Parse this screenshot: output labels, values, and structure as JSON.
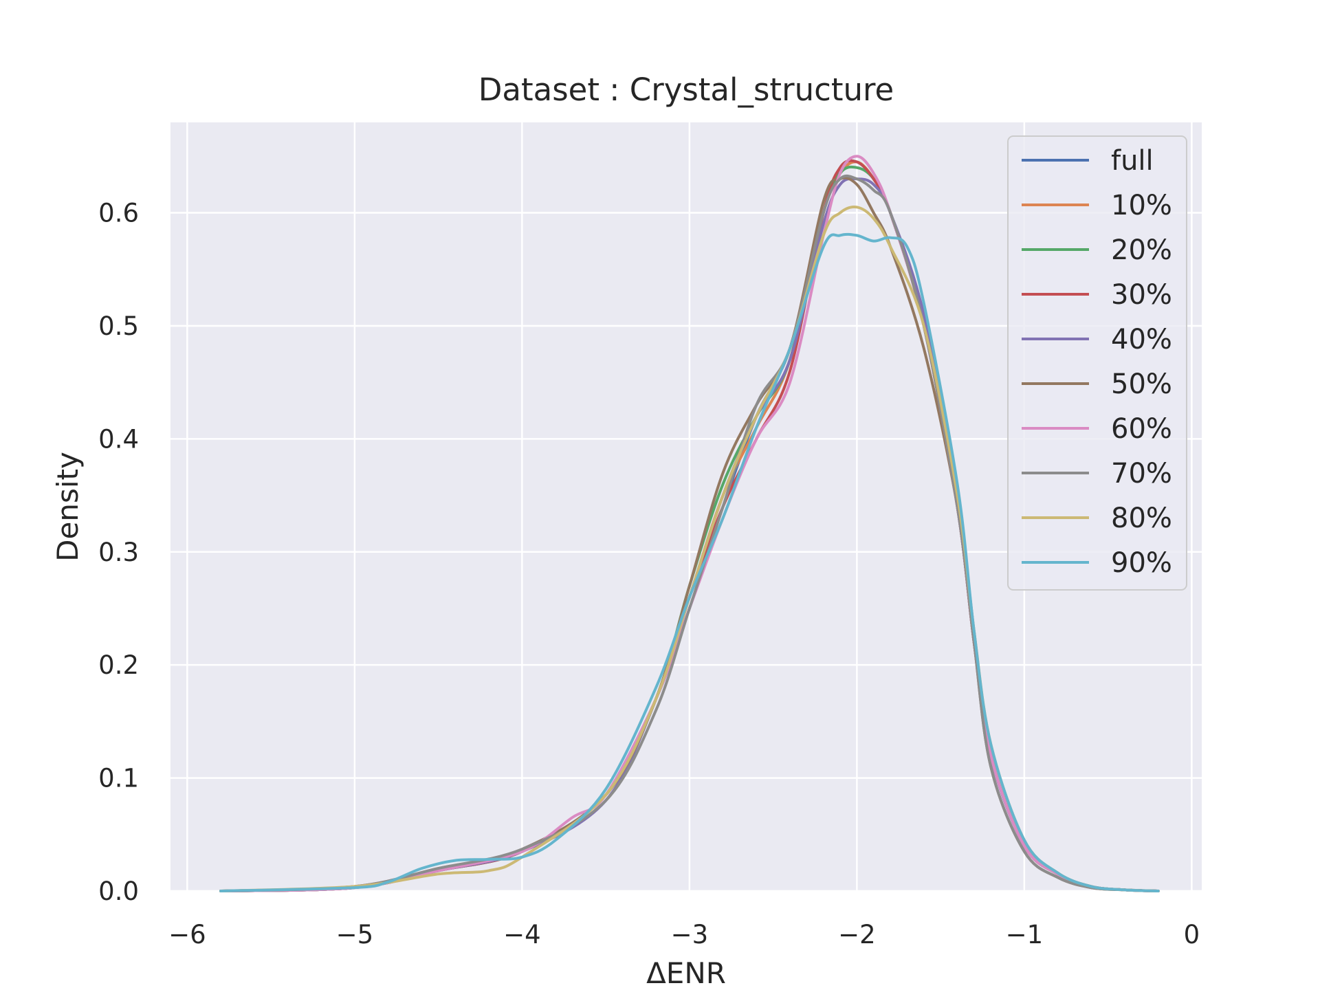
{
  "chart_data": {
    "type": "line",
    "title": "Dataset : Crystal_structure",
    "xlabel": "ΔENR",
    "ylabel": "Density",
    "xlim": [
      -6.1,
      0.06
    ],
    "ylim": [
      0,
      0.68
    ],
    "xticks": [
      -6,
      -5,
      -4,
      -3,
      -2,
      -1,
      0
    ],
    "xtick_labels": [
      "−6",
      "−5",
      "−4",
      "−3",
      "−2",
      "−1",
      "0"
    ],
    "yticks": [
      0.0,
      0.1,
      0.2,
      0.3,
      0.4,
      0.5,
      0.6
    ],
    "ytick_labels": [
      "0.0",
      "0.1",
      "0.2",
      "0.3",
      "0.4",
      "0.5",
      "0.6"
    ],
    "grid": true,
    "legend_position": "top-right",
    "colors": {
      "background": "#eaeaf2",
      "grid": "#ffffff",
      "text": "#262626"
    },
    "series": [
      {
        "name": "full",
        "color": "#4c72b0",
        "x": [
          -5.8,
          -5.0,
          -4.5,
          -4.0,
          -3.5,
          -3.2,
          -3.0,
          -2.8,
          -2.6,
          -2.4,
          -2.2,
          -2.1,
          -2.0,
          -1.9,
          -1.8,
          -1.6,
          -1.4,
          -1.3,
          -1.2,
          -1.0,
          -0.8,
          -0.6,
          -0.4,
          -0.2
        ],
        "y": [
          0.0,
          0.003,
          0.018,
          0.035,
          0.085,
          0.17,
          0.25,
          0.34,
          0.42,
          0.48,
          0.6,
          0.64,
          0.645,
          0.63,
          0.6,
          0.5,
          0.34,
          0.22,
          0.12,
          0.04,
          0.015,
          0.004,
          0.001,
          0.0
        ]
      },
      {
        "name": "10%",
        "color": "#dd8452",
        "x": [
          -5.8,
          -5.0,
          -4.5,
          -4.0,
          -3.5,
          -3.2,
          -3.0,
          -2.8,
          -2.6,
          -2.4,
          -2.2,
          -2.1,
          -2.0,
          -1.9,
          -1.8,
          -1.6,
          -1.4,
          -1.3,
          -1.2,
          -1.0,
          -0.8,
          -0.6,
          -0.4,
          -0.2
        ],
        "y": [
          0.0,
          0.003,
          0.018,
          0.035,
          0.085,
          0.17,
          0.26,
          0.35,
          0.41,
          0.47,
          0.6,
          0.635,
          0.645,
          0.63,
          0.6,
          0.5,
          0.34,
          0.22,
          0.12,
          0.04,
          0.015,
          0.004,
          0.001,
          0.0
        ]
      },
      {
        "name": "20%",
        "color": "#55a868",
        "x": [
          -5.8,
          -5.0,
          -4.5,
          -4.0,
          -3.5,
          -3.2,
          -3.0,
          -2.8,
          -2.6,
          -2.4,
          -2.2,
          -2.1,
          -2.0,
          -1.9,
          -1.8,
          -1.6,
          -1.4,
          -1.3,
          -1.2,
          -1.0,
          -0.8,
          -0.6,
          -0.4,
          -0.2
        ],
        "y": [
          0.0,
          0.003,
          0.018,
          0.035,
          0.085,
          0.17,
          0.27,
          0.36,
          0.42,
          0.47,
          0.6,
          0.635,
          0.64,
          0.63,
          0.6,
          0.5,
          0.34,
          0.22,
          0.12,
          0.04,
          0.015,
          0.004,
          0.001,
          0.0
        ]
      },
      {
        "name": "30%",
        "color": "#c44e52",
        "x": [
          -5.8,
          -5.0,
          -4.5,
          -4.0,
          -3.5,
          -3.2,
          -3.0,
          -2.8,
          -2.6,
          -2.4,
          -2.2,
          -2.1,
          -2.0,
          -1.9,
          -1.8,
          -1.6,
          -1.4,
          -1.3,
          -1.2,
          -1.0,
          -0.8,
          -0.6,
          -0.4,
          -0.2
        ],
        "y": [
          0.0,
          0.003,
          0.018,
          0.035,
          0.085,
          0.17,
          0.26,
          0.34,
          0.4,
          0.46,
          0.6,
          0.64,
          0.645,
          0.63,
          0.6,
          0.5,
          0.34,
          0.22,
          0.12,
          0.04,
          0.015,
          0.004,
          0.001,
          0.0
        ]
      },
      {
        "name": "40%",
        "color": "#8172b3",
        "x": [
          -5.8,
          -5.0,
          -4.5,
          -4.0,
          -3.5,
          -3.2,
          -3.0,
          -2.8,
          -2.6,
          -2.4,
          -2.2,
          -2.1,
          -2.0,
          -1.9,
          -1.8,
          -1.6,
          -1.4,
          -1.3,
          -1.2,
          -1.0,
          -0.8,
          -0.6,
          -0.4,
          -0.2
        ],
        "y": [
          0.0,
          0.003,
          0.018,
          0.035,
          0.08,
          0.17,
          0.26,
          0.35,
          0.42,
          0.47,
          0.59,
          0.625,
          0.63,
          0.625,
          0.6,
          0.51,
          0.35,
          0.23,
          0.12,
          0.04,
          0.015,
          0.004,
          0.001,
          0.0
        ]
      },
      {
        "name": "50%",
        "color": "#937860",
        "x": [
          -5.8,
          -5.0,
          -4.5,
          -4.0,
          -3.5,
          -3.2,
          -3.0,
          -2.8,
          -2.6,
          -2.4,
          -2.2,
          -2.1,
          -2.0,
          -1.9,
          -1.8,
          -1.6,
          -1.4,
          -1.3,
          -1.2,
          -1.0,
          -0.8,
          -0.6,
          -0.4,
          -0.2
        ],
        "y": [
          0.0,
          0.004,
          0.02,
          0.037,
          0.085,
          0.17,
          0.27,
          0.37,
          0.43,
          0.48,
          0.61,
          0.63,
          0.625,
          0.6,
          0.57,
          0.48,
          0.34,
          0.22,
          0.11,
          0.035,
          0.012,
          0.003,
          0.001,
          0.0
        ]
      },
      {
        "name": "60%",
        "color": "#da8bc3",
        "x": [
          -5.8,
          -5.0,
          -4.5,
          -4.0,
          -3.7,
          -3.5,
          -3.2,
          -3.0,
          -2.8,
          -2.6,
          -2.4,
          -2.2,
          -2.1,
          -2.0,
          -1.9,
          -1.8,
          -1.6,
          -1.4,
          -1.3,
          -1.2,
          -1.0,
          -0.8,
          -0.6,
          -0.4,
          -0.2
        ],
        "y": [
          0.0,
          0.003,
          0.018,
          0.035,
          0.065,
          0.085,
          0.17,
          0.25,
          0.33,
          0.4,
          0.45,
          0.58,
          0.635,
          0.65,
          0.635,
          0.6,
          0.5,
          0.34,
          0.22,
          0.12,
          0.04,
          0.015,
          0.004,
          0.001,
          0.0
        ]
      },
      {
        "name": "70%",
        "color": "#8c8c8c",
        "x": [
          -5.8,
          -5.0,
          -4.5,
          -4.0,
          -3.5,
          -3.2,
          -3.0,
          -2.8,
          -2.6,
          -2.4,
          -2.2,
          -2.1,
          -2.0,
          -1.9,
          -1.8,
          -1.6,
          -1.4,
          -1.3,
          -1.2,
          -1.0,
          -0.8,
          -0.6,
          -0.4,
          -0.2
        ],
        "y": [
          0.0,
          0.004,
          0.02,
          0.037,
          0.08,
          0.16,
          0.25,
          0.34,
          0.43,
          0.48,
          0.6,
          0.63,
          0.63,
          0.62,
          0.6,
          0.5,
          0.34,
          0.22,
          0.11,
          0.035,
          0.012,
          0.003,
          0.001,
          0.0
        ]
      },
      {
        "name": "80%",
        "color": "#ccb974",
        "x": [
          -5.8,
          -5.0,
          -4.5,
          -4.2,
          -4.0,
          -3.5,
          -3.2,
          -3.0,
          -2.8,
          -2.6,
          -2.4,
          -2.2,
          -2.1,
          -2.0,
          -1.9,
          -1.8,
          -1.6,
          -1.4,
          -1.3,
          -1.2,
          -1.0,
          -0.8,
          -0.6,
          -0.4,
          -0.2
        ],
        "y": [
          0.0,
          0.004,
          0.015,
          0.018,
          0.03,
          0.085,
          0.17,
          0.26,
          0.35,
          0.42,
          0.48,
          0.58,
          0.6,
          0.605,
          0.595,
          0.57,
          0.5,
          0.35,
          0.23,
          0.13,
          0.045,
          0.016,
          0.004,
          0.001,
          0.0
        ]
      },
      {
        "name": "90%",
        "color": "#64b5cd",
        "x": [
          -5.8,
          -5.0,
          -4.8,
          -4.6,
          -4.4,
          -4.2,
          -4.0,
          -3.8,
          -3.5,
          -3.2,
          -3.0,
          -2.8,
          -2.6,
          -2.4,
          -2.2,
          -2.1,
          -2.0,
          -1.9,
          -1.8,
          -1.7,
          -1.6,
          -1.4,
          -1.3,
          -1.2,
          -1.0,
          -0.8,
          -0.6,
          -0.4,
          -0.2
        ],
        "y": [
          0.0,
          0.003,
          0.008,
          0.02,
          0.027,
          0.028,
          0.03,
          0.045,
          0.09,
          0.18,
          0.26,
          0.33,
          0.41,
          0.48,
          0.57,
          0.58,
          0.58,
          0.575,
          0.578,
          0.57,
          0.52,
          0.36,
          0.23,
          0.13,
          0.045,
          0.016,
          0.004,
          0.001,
          0.0
        ]
      }
    ]
  }
}
